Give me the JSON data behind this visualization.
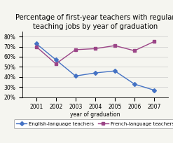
{
  "title": "Percentage of first-year teachers with regular\nteaching jobs by year of graduation",
  "years": [
    2001,
    2002,
    2003,
    2004,
    2005,
    2006,
    2007
  ],
  "english": [
    73,
    57,
    41,
    44,
    46,
    33,
    27
  ],
  "french": [
    70,
    53,
    67,
    68,
    71,
    66,
    75
  ],
  "english_color": "#4472c4",
  "french_color": "#9b4587",
  "english_label": "English-language teachers",
  "french_label": "French-language teachers",
  "xlabel": "year of graduation",
  "ylim": [
    20,
    85
  ],
  "yticks": [
    20,
    30,
    40,
    50,
    60,
    70,
    80
  ],
  "background_color": "#f5f5f0",
  "plot_bg": "#f5f5f0",
  "title_fontsize": 7.2,
  "axis_fontsize": 5.5,
  "legend_fontsize": 5.0
}
